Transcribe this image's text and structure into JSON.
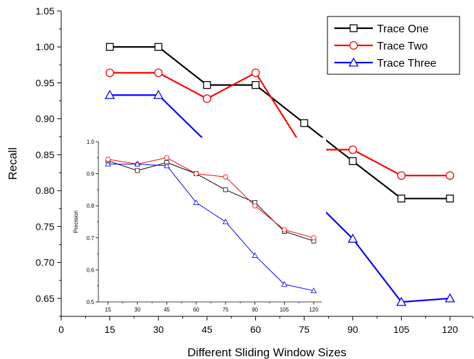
{
  "chart_data": [
    {
      "type": "line",
      "xlabel": "Different Sliding Window Sizes",
      "ylabel": "Recall",
      "x": [
        15,
        30,
        45,
        60,
        75,
        90,
        105,
        120
      ],
      "xlim": [
        0,
        127
      ],
      "ylim": [
        0.625,
        1.05
      ],
      "xticks": [
        0,
        15,
        30,
        45,
        60,
        75,
        90,
        105,
        120
      ],
      "yticks": [
        0.65,
        0.7,
        0.75,
        0.8,
        0.85,
        0.9,
        0.95,
        1.0,
        1.05
      ],
      "xtick_labels": [
        "0",
        "15",
        "30",
        "45",
        "60",
        "75",
        "90",
        "105",
        "120"
      ],
      "ytick_labels": [
        "0.65",
        "0.70",
        "0.75",
        "0.80",
        "0.85",
        "0.90",
        "0.95",
        "1.00",
        "1.05"
      ],
      "legend_position": "top-right",
      "grid": false,
      "series": [
        {
          "name": "Trace One",
          "color": "#000000",
          "marker": "square",
          "values": [
            1.0,
            1.0,
            0.947,
            0.947,
            0.894,
            0.841,
            0.789,
            0.789
          ]
        },
        {
          "name": "Trace Two",
          "color": "#ff0000",
          "marker": "circle",
          "values": [
            0.964,
            0.964,
            0.928,
            0.964,
            0.857,
            0.857,
            0.821,
            0.821
          ]
        },
        {
          "name": "Trace Three",
          "color": "#0000ff",
          "marker": "triangle",
          "values": [
            0.933,
            0.933,
            0.867,
            0.867,
            0.8,
            0.733,
            0.645,
            0.65
          ]
        }
      ]
    },
    {
      "type": "line",
      "xlabel": "",
      "ylabel": "Precision",
      "x": [
        15,
        30,
        45,
        60,
        75,
        90,
        105,
        120
      ],
      "xlim": [
        15,
        120
      ],
      "ylim": [
        0.5,
        1.0
      ],
      "xticks": [
        15,
        30,
        45,
        60,
        75,
        90,
        105,
        120
      ],
      "yticks": [
        0.5,
        0.6,
        0.7,
        0.8,
        0.9,
        1.0
      ],
      "xtick_labels": [
        "15",
        "30",
        "45",
        "60",
        "75",
        "90",
        "105",
        "120"
      ],
      "ytick_labels": [
        "0.5",
        "0.6",
        "0.7",
        "0.8",
        "0.9",
        "1.0"
      ],
      "legend_position": "none",
      "grid": false,
      "series": [
        {
          "color": "#000000",
          "marker": "square",
          "values": [
            0.94,
            0.91,
            0.935,
            0.9,
            0.85,
            0.81,
            0.72,
            0.69
          ]
        },
        {
          "color": "#ff0000",
          "marker": "circle",
          "values": [
            0.945,
            0.93,
            0.95,
            0.9,
            0.89,
            0.8,
            0.725,
            0.7
          ]
        },
        {
          "color": "#0000ff",
          "marker": "triangle",
          "values": [
            0.93,
            0.93,
            0.925,
            0.81,
            0.75,
            0.645,
            0.555,
            0.535
          ]
        }
      ]
    }
  ]
}
